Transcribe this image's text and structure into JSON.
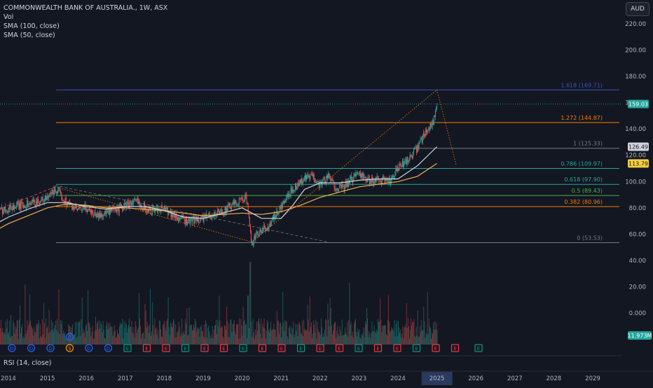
{
  "legend": {
    "title": "COMMONWEALTH BANK OF AUSTRALIA., 1W, ASX",
    "vol": "Vol",
    "sma100": "SMA (100, close)",
    "sma50": "SMA (50, close)"
  },
  "currency": "AUD",
  "rsi_label": "RSI (14, close)",
  "colors": {
    "background": "#131722",
    "up": "#26a69a",
    "down": "#ef5350",
    "sma100": "#f0b04a",
    "sma50": "#d1d4dc",
    "fib_blue": "#3f51b5",
    "fib_orange": "#f57c00",
    "fib_teal": "#26a69a",
    "fib_gray": "#787b86",
    "dividend_blue": "#2962ff",
    "earnings_red": "#f23645",
    "earnings_green": "#089981"
  },
  "chart_data": {
    "type": "candlestick",
    "symbol": "COMMONWEALTH BANK OF AUSTRALIA., 1W, ASX",
    "y_axis_ticks": [
      "220.00",
      "200.00",
      "180.00",
      "160.00",
      "140.00",
      "120.00",
      "100.00",
      "80.00",
      "60.00",
      "40.00",
      "20.00",
      "0.000"
    ],
    "x_axis_ticks": [
      "2014",
      "2015",
      "2016",
      "2017",
      "2018",
      "2019",
      "2020",
      "2021",
      "2022",
      "2023",
      "2024",
      "2025",
      "2026",
      "2027",
      "2028",
      "2029"
    ],
    "x_highlight": "2025",
    "price_tags": [
      {
        "text": "159.03",
        "value": 159.03,
        "bg": "#26a69a",
        "fg": "#ffffff"
      },
      {
        "text": "126.49",
        "value": 126.49,
        "bg": "#d1d4dc",
        "fg": "#131722"
      },
      {
        "text": "113.79",
        "value": 113.79,
        "bg": "#f4d03f",
        "fg": "#131722"
      }
    ],
    "volume_tag": {
      "text": "11.973M",
      "bg": "#26a69a",
      "fg": "#ffffff"
    },
    "fib_levels": [
      {
        "label": "1.618 (169.71)",
        "value": 169.71,
        "color": "#3f51b5"
      },
      {
        "label": "1.272 (144.87)",
        "value": 144.87,
        "color": "#f57c00"
      },
      {
        "label": "1 (125.33)",
        "value": 125.33,
        "color": "#787b86"
      },
      {
        "label": "0.786 (109.97)",
        "value": 109.97,
        "color": "#26a69a"
      },
      {
        "label": "0.618 (97.90)",
        "value": 97.9,
        "color": "#26a69a"
      },
      {
        "label": "0.5 (89.43)",
        "value": 89.43,
        "color": "#4caf50"
      },
      {
        "label": "0.382 (80.96)",
        "value": 80.96,
        "color": "#f57c00"
      },
      {
        "label": "0 (53.53)",
        "value": 53.53,
        "color": "#787b86"
      }
    ],
    "price_path": [
      [
        2013.5,
        75
      ],
      [
        2014.0,
        80
      ],
      [
        2014.5,
        83
      ],
      [
        2015.0,
        87
      ],
      [
        2015.2,
        94
      ],
      [
        2015.5,
        84
      ],
      [
        2015.8,
        78
      ],
      [
        2016.0,
        80
      ],
      [
        2016.3,
        74
      ],
      [
        2016.6,
        77
      ],
      [
        2016.9,
        80
      ],
      [
        2017.0,
        82
      ],
      [
        2017.3,
        85
      ],
      [
        2017.6,
        78
      ],
      [
        2018.0,
        80
      ],
      [
        2018.3,
        73
      ],
      [
        2018.6,
        70
      ],
      [
        2019.0,
        72
      ],
      [
        2019.3,
        75
      ],
      [
        2019.6,
        79
      ],
      [
        2019.9,
        85
      ],
      [
        2020.1,
        88
      ],
      [
        2020.2,
        64
      ],
      [
        2020.25,
        54
      ],
      [
        2020.4,
        60
      ],
      [
        2020.7,
        67
      ],
      [
        2020.9,
        76
      ],
      [
        2021.1,
        85
      ],
      [
        2021.3,
        95
      ],
      [
        2021.6,
        102
      ],
      [
        2021.8,
        104
      ],
      [
        2022.0,
        98
      ],
      [
        2022.2,
        104
      ],
      [
        2022.4,
        96
      ],
      [
        2022.6,
        95
      ],
      [
        2022.9,
        105
      ],
      [
        2023.0,
        108
      ],
      [
        2023.2,
        100
      ],
      [
        2023.5,
        102
      ],
      [
        2023.8,
        100
      ],
      [
        2024.0,
        110
      ],
      [
        2024.3,
        118
      ],
      [
        2024.5,
        125
      ],
      [
        2024.7,
        138
      ],
      [
        2024.9,
        145
      ],
      [
        2025.0,
        159
      ]
    ],
    "sma100_path": [
      [
        2013.5,
        60
      ],
      [
        2014.0,
        68
      ],
      [
        2014.5,
        74
      ],
      [
        2015.0,
        80
      ],
      [
        2015.5,
        83
      ],
      [
        2016.0,
        82
      ],
      [
        2016.5,
        80
      ],
      [
        2017.0,
        80
      ],
      [
        2017.5,
        79
      ],
      [
        2018.0,
        78
      ],
      [
        2018.5,
        76
      ],
      [
        2019.0,
        74
      ],
      [
        2019.5,
        75
      ],
      [
        2020.0,
        76
      ],
      [
        2020.5,
        75
      ],
      [
        2021.0,
        77
      ],
      [
        2021.5,
        82
      ],
      [
        2022.0,
        88
      ],
      [
        2022.5,
        92
      ],
      [
        2023.0,
        96
      ],
      [
        2023.5,
        98
      ],
      [
        2024.0,
        100
      ],
      [
        2024.5,
        104
      ],
      [
        2025.0,
        113.79
      ]
    ],
    "sma50_path": [
      [
        2013.5,
        65
      ],
      [
        2014.0,
        73
      ],
      [
        2014.5,
        79
      ],
      [
        2015.0,
        84
      ],
      [
        2015.5,
        84
      ],
      [
        2016.0,
        81
      ],
      [
        2016.5,
        79
      ],
      [
        2017.0,
        81
      ],
      [
        2017.5,
        81
      ],
      [
        2018.0,
        78
      ],
      [
        2018.5,
        73
      ],
      [
        2019.0,
        72
      ],
      [
        2019.5,
        76
      ],
      [
        2020.0,
        80
      ],
      [
        2020.5,
        72
      ],
      [
        2021.0,
        72
      ],
      [
        2021.3,
        82
      ],
      [
        2021.6,
        94
      ],
      [
        2022.0,
        99
      ],
      [
        2022.5,
        99
      ],
      [
        2023.0,
        101
      ],
      [
        2023.5,
        102
      ],
      [
        2024.0,
        102
      ],
      [
        2024.5,
        112
      ],
      [
        2025.0,
        126.49
      ]
    ],
    "projection_path": [
      [
        2015.2,
        96
      ],
      [
        2020.25,
        54
      ],
      [
        2025.0,
        169.71
      ],
      [
        2025.5,
        112
      ]
    ],
    "trend_dashed": [
      [
        2013.5,
        76
      ],
      [
        2015.2,
        96
      ]
    ],
    "trend_dashed_down": [
      [
        2015.2,
        97
      ],
      [
        2022.2,
        54
      ]
    ],
    "events": [
      "D",
      "D",
      "D",
      "S",
      "D",
      "D",
      "E",
      "E",
      "E",
      "E",
      "E",
      "E",
      "E",
      "E",
      "E",
      "E",
      "E",
      "E",
      "E",
      "E",
      "E",
      "E",
      "E",
      "E",
      "E"
    ],
    "event_above_index": 4
  }
}
